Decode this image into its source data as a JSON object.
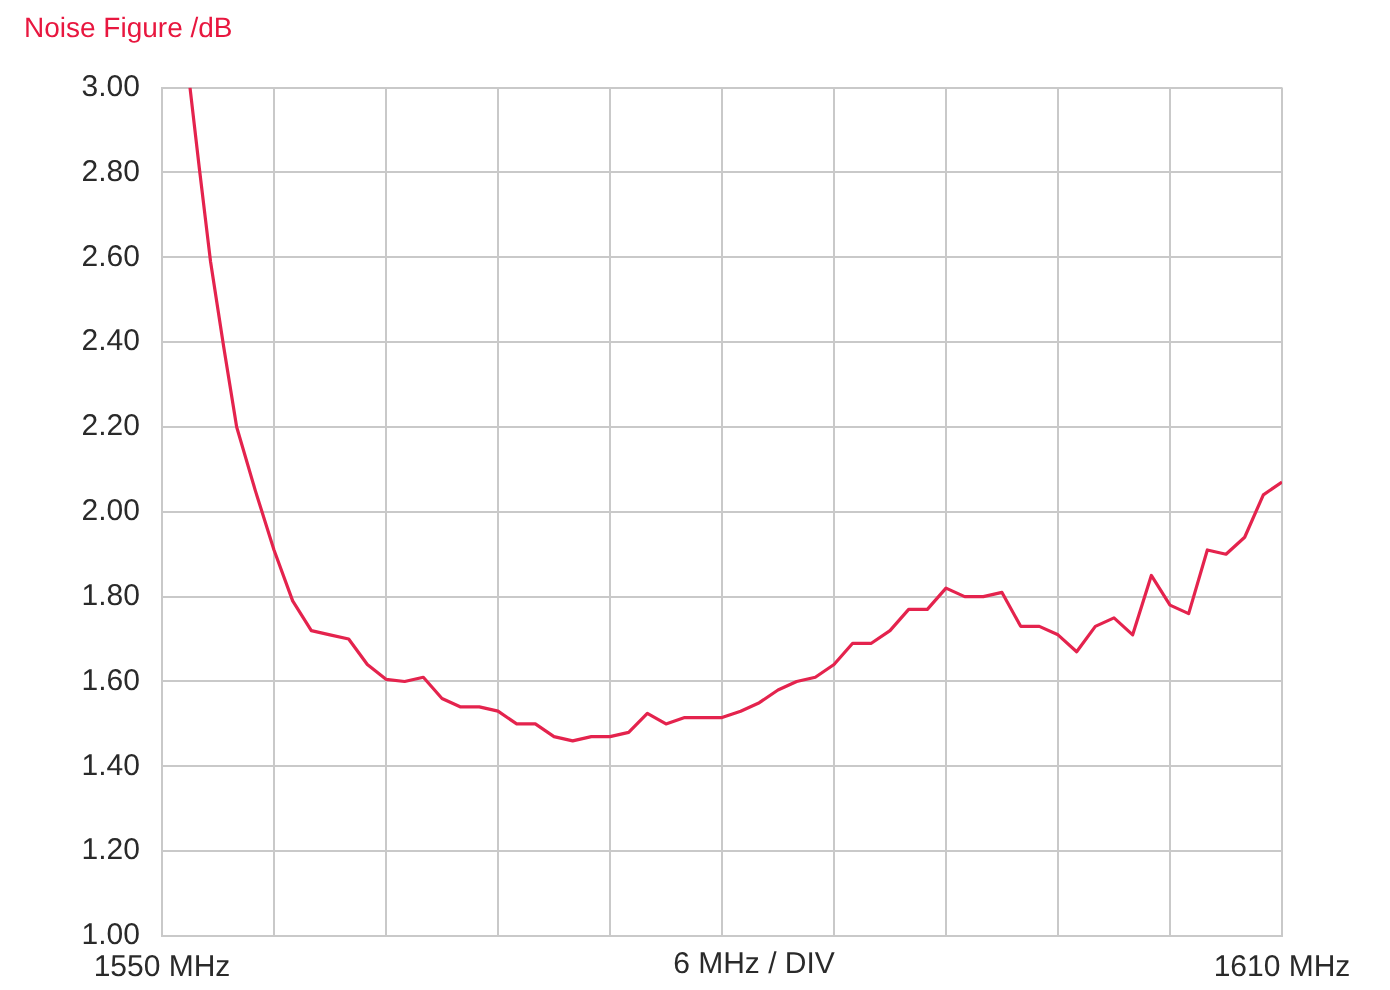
{
  "chart_data": {
    "type": "line",
    "ylabel": "Noise Figure /dB",
    "xlabel": "6 MHz / DIV",
    "x": [
      1551.5,
      1552,
      1552.6,
      1553.3,
      1554,
      1555,
      1556,
      1557,
      1558,
      1559,
      1560,
      1561,
      1562,
      1563,
      1564,
      1565,
      1566,
      1567,
      1568,
      1569,
      1570,
      1571,
      1572,
      1573,
      1574,
      1575,
      1576,
      1577,
      1578,
      1579,
      1580,
      1581,
      1582,
      1583,
      1584,
      1585,
      1586,
      1587,
      1588,
      1589,
      1590,
      1591,
      1592,
      1593,
      1594,
      1595,
      1596,
      1597,
      1598,
      1599,
      1600,
      1601,
      1602,
      1603,
      1604,
      1605,
      1606,
      1607,
      1608,
      1609,
      1610
    ],
    "series": [
      {
        "color": "#e4234d",
        "values": [
          3.0,
          2.81,
          2.59,
          2.39,
          2.2,
          2.05,
          1.91,
          1.79,
          1.72,
          1.71,
          1.7,
          1.64,
          1.605,
          1.6,
          1.61,
          1.56,
          1.54,
          1.54,
          1.53,
          1.5,
          1.5,
          1.47,
          1.46,
          1.47,
          1.47,
          1.48,
          1.525,
          1.5,
          1.515,
          1.515,
          1.515,
          1.53,
          1.55,
          1.58,
          1.6,
          1.61,
          1.64,
          1.69,
          1.69,
          1.72,
          1.77,
          1.77,
          1.82,
          1.8,
          1.8,
          1.81,
          1.73,
          1.73,
          1.71,
          1.67,
          1.73,
          1.75,
          1.71,
          1.85,
          1.78,
          1.76,
          1.91,
          1.9,
          1.94,
          2.04,
          2.07
        ]
      }
    ],
    "xlim": [
      1550,
      1610
    ],
    "xticks": [
      {
        "value": 1550,
        "label": "1550 MHz"
      },
      {
        "value": 1556,
        "label": null
      },
      {
        "value": 1562,
        "label": null
      },
      {
        "value": 1568,
        "label": null
      },
      {
        "value": 1574,
        "label": null
      },
      {
        "value": 1580,
        "label": null
      },
      {
        "value": 1586,
        "label": null
      },
      {
        "value": 1592,
        "label": null
      },
      {
        "value": 1598,
        "label": null
      },
      {
        "value": 1604,
        "label": null
      },
      {
        "value": 1610,
        "label": "1610 MHz"
      }
    ],
    "ylim": [
      1,
      3
    ],
    "yticks": [
      {
        "value": 1,
        "label": "1.00"
      },
      {
        "value": 1.2,
        "label": "1.20"
      },
      {
        "value": 1.4,
        "label": "1.40"
      },
      {
        "value": 1.6,
        "label": "1.60"
      },
      {
        "value": 1.8,
        "label": "1.80"
      },
      {
        "value": 2,
        "label": "2.00"
      },
      {
        "value": 2.2,
        "label": "2.20"
      },
      {
        "value": 2.4,
        "label": "2.40"
      },
      {
        "value": 2.6,
        "label": "2.60"
      },
      {
        "value": 2.8,
        "label": "2.80"
      },
      {
        "value": 3,
        "label": "3.00"
      }
    ],
    "grid": true
  }
}
